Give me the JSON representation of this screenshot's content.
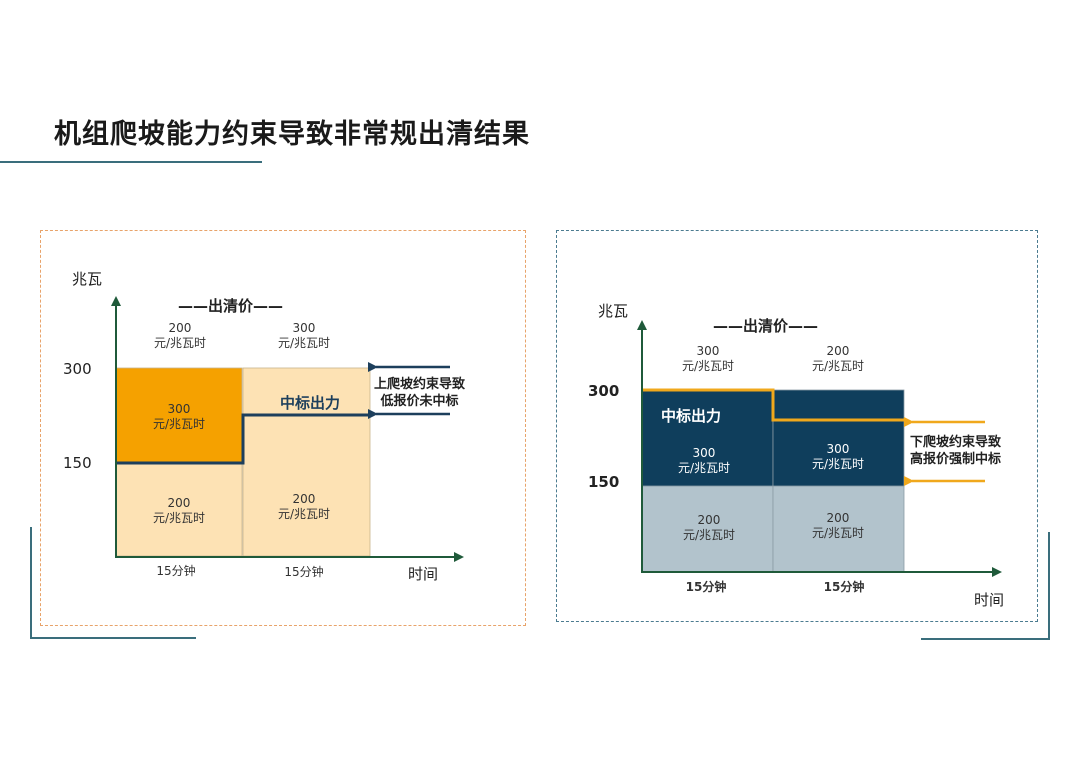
{
  "page": {
    "title": "机组爬坡能力约束导致非常规出清结果"
  },
  "left_panel": {
    "y_axis_label": "兆瓦",
    "x_axis_label": "时间",
    "clearing_price_label": "——出清价——",
    "tick_300": "300",
    "tick_150": "150",
    "clearing_prices": [
      "200\n元/兆瓦时",
      "300\n元/兆瓦时"
    ],
    "block_upper_left": "300\n元/兆瓦时",
    "block_lower_left": "200\n元/兆瓦时",
    "block_right_lower": "200\n元/兆瓦时",
    "awarded_label": "中标出力",
    "note": "上爬坡约束导致\n低报价未中标",
    "periods": [
      "15分钟",
      "15分钟"
    ]
  },
  "right_panel": {
    "y_axis_label": "兆瓦",
    "x_axis_label": "时间",
    "clearing_price_label": "——出清价——",
    "tick_300": "300",
    "tick_150": "150",
    "clearing_prices": [
      "300\n元/兆瓦时",
      "200\n元/兆瓦时"
    ],
    "block_upper_left": "300\n元/兆瓦时",
    "block_upper_right": "300\n元/兆瓦时",
    "block_lower_left": "200\n元/兆瓦时",
    "block_lower_right": "200\n元/兆瓦时",
    "awarded_label": "中标出力",
    "note": "下爬坡约束导致\n高报价强制中标",
    "periods": [
      "15分钟",
      "15分钟"
    ]
  },
  "colors": {
    "orange_dark": "#f5a100",
    "orange_light": "#fde2b4",
    "navy": "#0f3e5c",
    "grey_blue": "#b2c3cc",
    "arrow_navy": "#1d3f5c",
    "accent_yellow": "#f0a81c",
    "teal_line": "#3a6e7c"
  }
}
